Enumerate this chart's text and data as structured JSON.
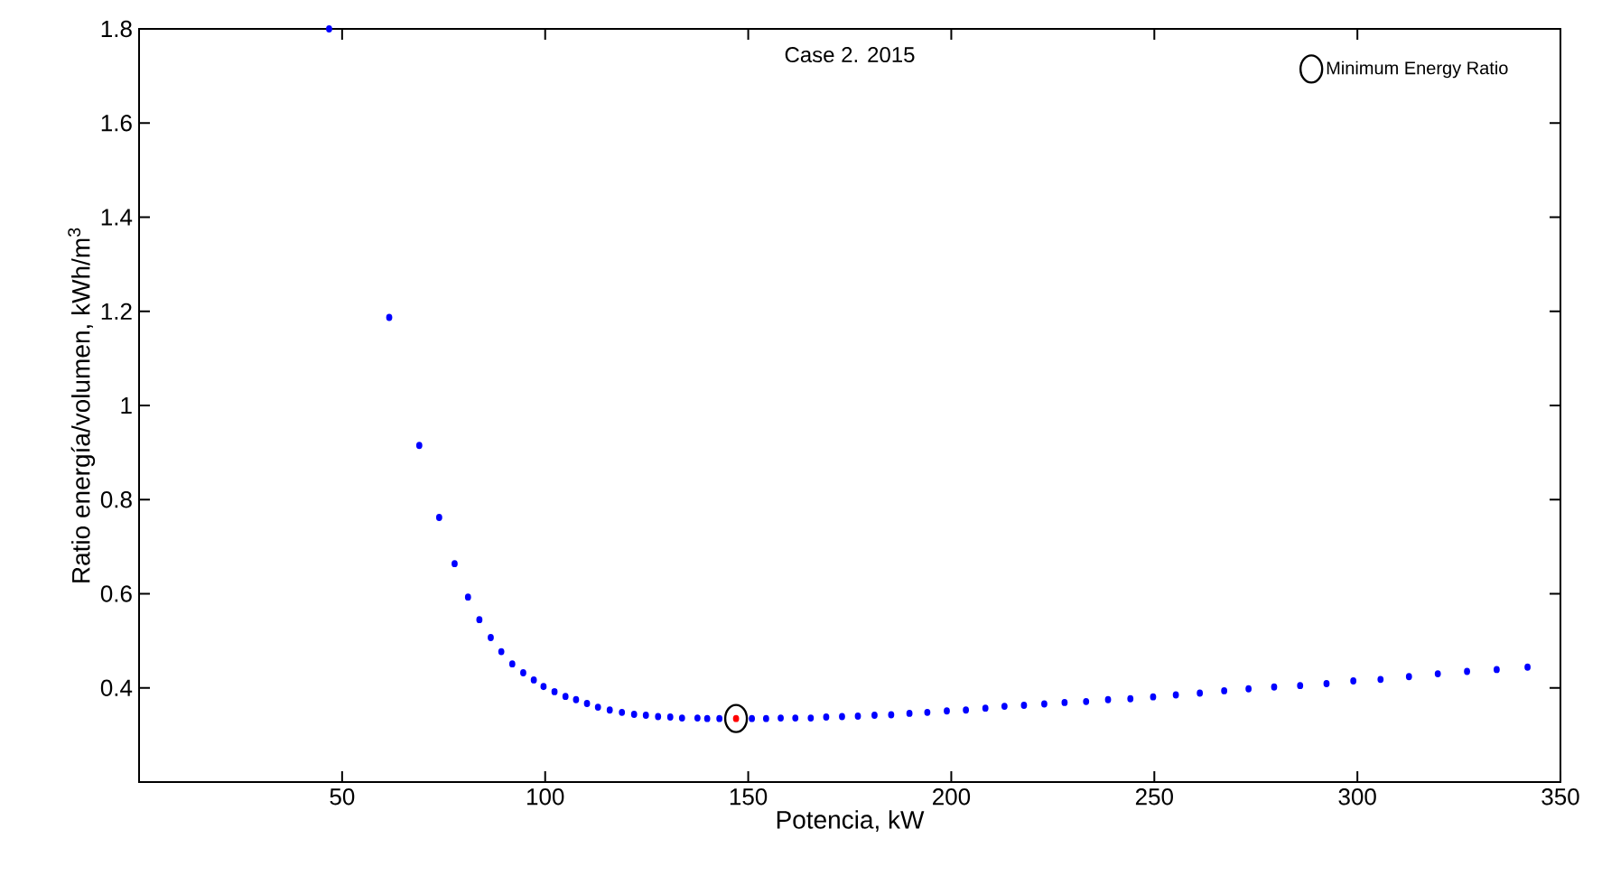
{
  "chart_data": {
    "type": "scatter",
    "title": "Case 2. 2015",
    "xlabel": "Potencia, kW",
    "ylabel": "Ratio energía/volumen, kWh/m$^{3}$",
    "xlim": [
      0,
      350
    ],
    "ylim": [
      0.2,
      1.8
    ],
    "xticks": [
      50,
      100,
      150,
      200,
      250,
      300,
      350
    ],
    "yticks": [
      0.4,
      0.6,
      0.8,
      1,
      1.2,
      1.4,
      1.6,
      1.8
    ],
    "legend": "top right",
    "series": [
      {
        "color": "#0000ff",
        "marker": "circle",
        "x": [
          46.8,
          61.6,
          69.0,
          73.9,
          77.7,
          81.0,
          83.8,
          86.6,
          89.2,
          91.9,
          94.6,
          97.2,
          99.6,
          102.3,
          105.0,
          107.6,
          110.3,
          113.0,
          115.9,
          118.9,
          121.9,
          124.8,
          127.8,
          130.8,
          133.7,
          137.5,
          139.9,
          142.9,
          150.9,
          154.4,
          158.0,
          161.6,
          165.4,
          169.2,
          173.1,
          177.0,
          181.1,
          185.2,
          189.7,
          194.1,
          198.9,
          203.6,
          208.4,
          213.1,
          217.9,
          222.9,
          227.9,
          233.2,
          238.6,
          244.1,
          249.7,
          255.3,
          261.2,
          267.2,
          273.2,
          279.5,
          285.9,
          292.4,
          299.0,
          305.7,
          312.7,
          319.8,
          327.0,
          334.3,
          341.9
        ],
        "values": [
          1.8,
          1.187,
          0.915,
          0.762,
          0.664,
          0.593,
          0.545,
          0.507,
          0.477,
          0.451,
          0.432,
          0.417,
          0.403,
          0.392,
          0.382,
          0.375,
          0.367,
          0.359,
          0.353,
          0.348,
          0.344,
          0.342,
          0.339,
          0.338,
          0.336,
          0.336,
          0.335,
          0.335,
          0.335,
          0.335,
          0.336,
          0.336,
          0.336,
          0.338,
          0.339,
          0.34,
          0.342,
          0.343,
          0.346,
          0.348,
          0.351,
          0.353,
          0.357,
          0.361,
          0.363,
          0.366,
          0.369,
          0.371,
          0.375,
          0.377,
          0.381,
          0.385,
          0.389,
          0.394,
          0.398,
          0.402,
          0.405,
          0.409,
          0.415,
          0.418,
          0.424,
          0.43,
          0.435,
          0.439,
          0.444
        ]
      },
      {
        "color": "#ff0000",
        "marker": "circle",
        "x": [
          147.0
        ],
        "values": [
          0.335
        ]
      },
      {
        "name": "Minimum Energy Ratio",
        "color": "#000000",
        "marker": "circle_open",
        "x": [
          147.0
        ],
        "values": [
          0.335
        ]
      }
    ]
  }
}
